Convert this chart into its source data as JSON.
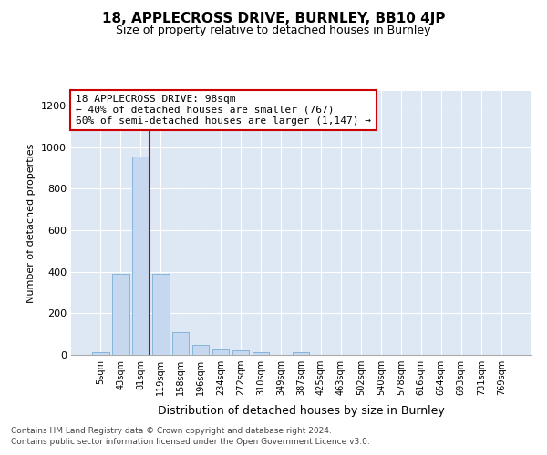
{
  "title": "18, APPLECROSS DRIVE, BURNLEY, BB10 4JP",
  "subtitle": "Size of property relative to detached houses in Burnley",
  "xlabel": "Distribution of detached houses by size in Burnley",
  "ylabel": "Number of detached properties",
  "categories": [
    "5sqm",
    "43sqm",
    "81sqm",
    "119sqm",
    "158sqm",
    "196sqm",
    "234sqm",
    "272sqm",
    "310sqm",
    "349sqm",
    "387sqm",
    "425sqm",
    "463sqm",
    "502sqm",
    "540sqm",
    "578sqm",
    "616sqm",
    "654sqm",
    "693sqm",
    "731sqm",
    "769sqm"
  ],
  "values": [
    14,
    390,
    955,
    390,
    108,
    50,
    25,
    20,
    13,
    0,
    13,
    0,
    0,
    0,
    0,
    0,
    0,
    0,
    0,
    0,
    0
  ],
  "bar_color": "#c5d8ef",
  "bar_edge_color": "#7aaed4",
  "vline_color": "#cc0000",
  "vline_x": 2.43,
  "annotation_text": "18 APPLECROSS DRIVE: 98sqm\n← 40% of detached houses are smaller (767)\n60% of semi-detached houses are larger (1,147) →",
  "annotation_box_facecolor": "#ffffff",
  "annotation_box_edgecolor": "#cc0000",
  "ylim": [
    0,
    1270
  ],
  "yticks": [
    0,
    200,
    400,
    600,
    800,
    1000,
    1200
  ],
  "background_color": "#dde8f4",
  "footer_line1": "Contains HM Land Registry data © Crown copyright and database right 2024.",
  "footer_line2": "Contains public sector information licensed under the Open Government Licence v3.0."
}
